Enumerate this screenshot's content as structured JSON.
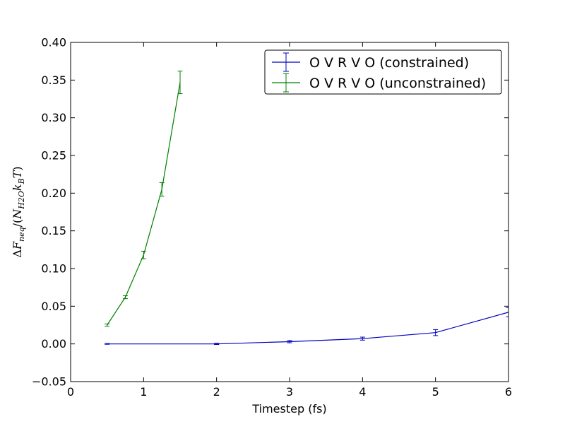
{
  "chart_data": {
    "type": "line",
    "title": "",
    "xlabel": "Timestep (fs)",
    "ylabel": "ΔF_neq/(N_H2O k_B T)",
    "xlim": [
      0,
      6
    ],
    "ylim": [
      -0.05,
      0.4
    ],
    "xticks": [
      "0",
      "1",
      "2",
      "3",
      "4",
      "5",
      "6"
    ],
    "yticks": [
      "−0.05",
      "0.00",
      "0.05",
      "0.10",
      "0.15",
      "0.20",
      "0.25",
      "0.30",
      "0.35",
      "0.40"
    ],
    "grid": false,
    "legend_position": "top-right",
    "series": [
      {
        "name": "O V R V O (constrained)",
        "color": "#0000bf",
        "x": [
          0.5,
          2,
          3,
          4,
          5,
          6
        ],
        "y": [
          0.0,
          0.0,
          0.003,
          0.007,
          0.015,
          0.042
        ],
        "err": [
          0.0005,
          0.0008,
          0.0015,
          0.002,
          0.004,
          0.006
        ]
      },
      {
        "name": "O V R V O (unconstrained)",
        "color": "#007f00",
        "x": [
          0.5,
          0.75,
          1.0,
          1.25,
          1.5
        ],
        "y": [
          0.025,
          0.062,
          0.118,
          0.205,
          0.347
        ],
        "err": [
          0.0015,
          0.002,
          0.005,
          0.009,
          0.015
        ]
      }
    ]
  }
}
